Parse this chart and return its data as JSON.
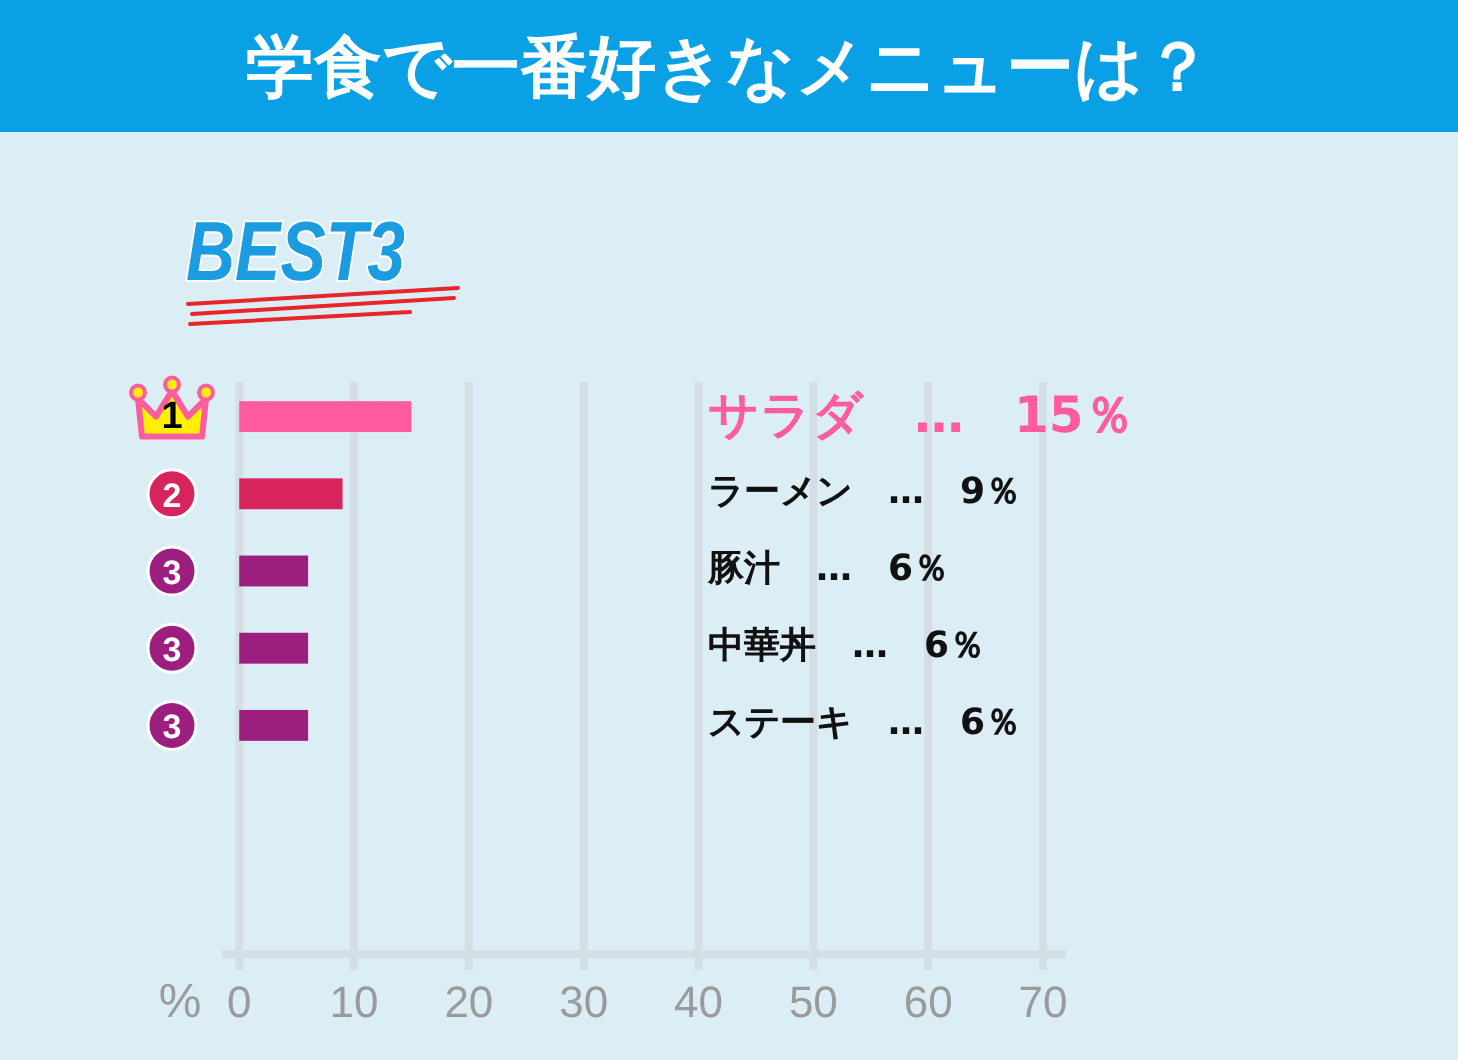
{
  "chart_data": {
    "type": "bar",
    "orientation": "horizontal",
    "title": "学食で一番好きなメニューは？",
    "subtitle": "BEST3",
    "xlabel": "%",
    "categories": [
      "サラダ　…　15％",
      "ラーメン　…　9％",
      "豚汁　…　6％",
      "中華丼　…　6％",
      "ステーキ　…　6％"
    ],
    "values": [
      15,
      9,
      6,
      6,
      6
    ],
    "colors": [
      "#ff5c9f",
      "#d8245c",
      "#9c1f80",
      "#9c1f80",
      "#9c1f80"
    ],
    "xlim": [
      -1.5,
      72
    ],
    "xticks": [
      0,
      10,
      20,
      30,
      40,
      50,
      60,
      70
    ],
    "grid": "x",
    "annotations": [
      "1",
      "2",
      "3",
      "3",
      "3"
    ]
  }
}
